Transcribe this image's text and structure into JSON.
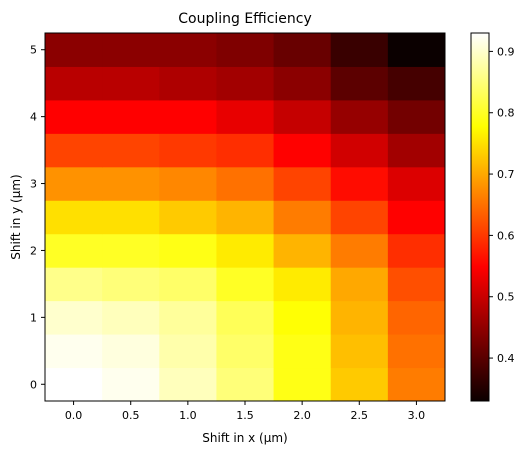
{
  "chart_data": {
    "type": "heatmap",
    "title": "Coupling Efficiency",
    "xlabel": "Shift in x (µm)",
    "ylabel": "Shift in y (µm)",
    "x": [
      0.0,
      0.5,
      1.0,
      1.5,
      2.0,
      2.5,
      3.0
    ],
    "y": [
      0.0,
      0.5,
      1.0,
      1.5,
      2.0,
      2.5,
      3.0,
      3.5,
      4.0,
      4.5,
      5.0
    ],
    "x_ticks": [
      0.0,
      0.5,
      1.0,
      1.5,
      2.0,
      2.5,
      3.0
    ],
    "x_tick_labels": [
      "0.0",
      "0.5",
      "1.0",
      "1.5",
      "2.0",
      "2.5",
      "3.0"
    ],
    "y_ticks": [
      0,
      1,
      2,
      3,
      4,
      5
    ],
    "y_tick_labels": [
      "0",
      "1",
      "2",
      "3",
      "4",
      "5"
    ],
    "xlim": [
      -0.25,
      3.25
    ],
    "ylim": [
      -0.25,
      5.25
    ],
    "colormap": "hot",
    "vmin": 0.33,
    "vmax": 0.93,
    "colorbar_ticks": [
      0.4,
      0.5,
      0.6,
      0.7,
      0.8,
      0.9
    ],
    "colorbar_tick_labels": [
      "0.4",
      "0.5",
      "0.6",
      "0.7",
      "0.8",
      "0.9"
    ],
    "values": [
      [
        0.93,
        0.92,
        0.89,
        0.85,
        0.79,
        0.73,
        0.66
      ],
      [
        0.92,
        0.91,
        0.88,
        0.84,
        0.79,
        0.72,
        0.65
      ],
      [
        0.9,
        0.89,
        0.87,
        0.83,
        0.78,
        0.71,
        0.64
      ],
      [
        0.86,
        0.85,
        0.84,
        0.8,
        0.76,
        0.7,
        0.62
      ],
      [
        0.8,
        0.8,
        0.79,
        0.76,
        0.71,
        0.66,
        0.59
      ],
      [
        0.75,
        0.75,
        0.73,
        0.71,
        0.66,
        0.61,
        0.55
      ],
      [
        0.68,
        0.68,
        0.67,
        0.65,
        0.61,
        0.56,
        0.51
      ],
      [
        0.61,
        0.61,
        0.6,
        0.59,
        0.55,
        0.5,
        0.46
      ],
      [
        0.54,
        0.54,
        0.54,
        0.52,
        0.49,
        0.45,
        0.42
      ],
      [
        0.48,
        0.48,
        0.47,
        0.46,
        0.44,
        0.4,
        0.38
      ],
      [
        0.44,
        0.44,
        0.44,
        0.43,
        0.41,
        0.37,
        0.33
      ]
    ],
    "grid": false
  }
}
